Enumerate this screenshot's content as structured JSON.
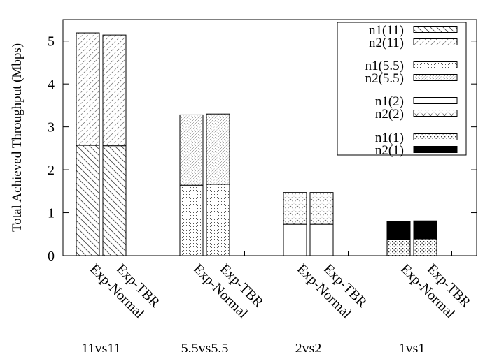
{
  "chart_data": {
    "type": "bar",
    "stacked": true,
    "ylabel": "Total Achieved Throughput (Mbps)",
    "xlabel": "",
    "ylim": [
      0,
      5.5
    ],
    "yticks": [
      "0",
      "1",
      "2",
      "3",
      "4",
      "5"
    ],
    "groups": [
      {
        "label": "11vs11",
        "bars": [
          {
            "label": "Exp-Normal",
            "segments": [
              {
                "series": "n1(11)",
                "value": 2.57
              },
              {
                "series": "n2(11)",
                "value": 2.62
              }
            ]
          },
          {
            "label": "Exp-TBR",
            "segments": [
              {
                "series": "n1(11)",
                "value": 2.56
              },
              {
                "series": "n2(11)",
                "value": 2.58
              }
            ]
          }
        ]
      },
      {
        "label": "5.5vs5.5",
        "bars": [
          {
            "label": "Exp-Normal",
            "segments": [
              {
                "series": "n1(5.5)",
                "value": 1.64
              },
              {
                "series": "n2(5.5)",
                "value": 1.64
              }
            ]
          },
          {
            "label": "Exp-TBR",
            "segments": [
              {
                "series": "n1(5.5)",
                "value": 1.66
              },
              {
                "series": "n2(5.5)",
                "value": 1.64
              }
            ]
          }
        ]
      },
      {
        "label": "2vs2",
        "bars": [
          {
            "label": "Exp-Normal",
            "segments": [
              {
                "series": "n1(2)",
                "value": 0.73
              },
              {
                "series": "n2(2)",
                "value": 0.74
              }
            ]
          },
          {
            "label": "Exp-TBR",
            "segments": [
              {
                "series": "n1(2)",
                "value": 0.73
              },
              {
                "series": "n2(2)",
                "value": 0.74
              }
            ]
          }
        ]
      },
      {
        "label": "1vs1",
        "bars": [
          {
            "label": "Exp-Normal",
            "segments": [
              {
                "series": "n1(1)",
                "value": 0.38
              },
              {
                "series": "n2(1)",
                "value": 0.41
              }
            ]
          },
          {
            "label": "Exp-TBR",
            "segments": [
              {
                "series": "n1(1)",
                "value": 0.39
              },
              {
                "series": "n2(1)",
                "value": 0.42
              }
            ]
          }
        ]
      }
    ],
    "legend": {
      "position": "top-right",
      "entries": [
        {
          "label": "n1(11)",
          "fill": "diag-back"
        },
        {
          "label": "n2(11)",
          "fill": "diag-fwd-dashed"
        },
        {
          "label": "n1(5.5)",
          "fill": "dots-dense"
        },
        {
          "label": "n2(5.5)",
          "fill": "fine-diag"
        },
        {
          "label": "n1(2)",
          "fill": "empty"
        },
        {
          "label": "n2(2)",
          "fill": "crosshatch"
        },
        {
          "label": "n1(1)",
          "fill": "dots-grid"
        },
        {
          "label": "n2(1)",
          "fill": "solid-black"
        }
      ]
    },
    "grid": false
  }
}
